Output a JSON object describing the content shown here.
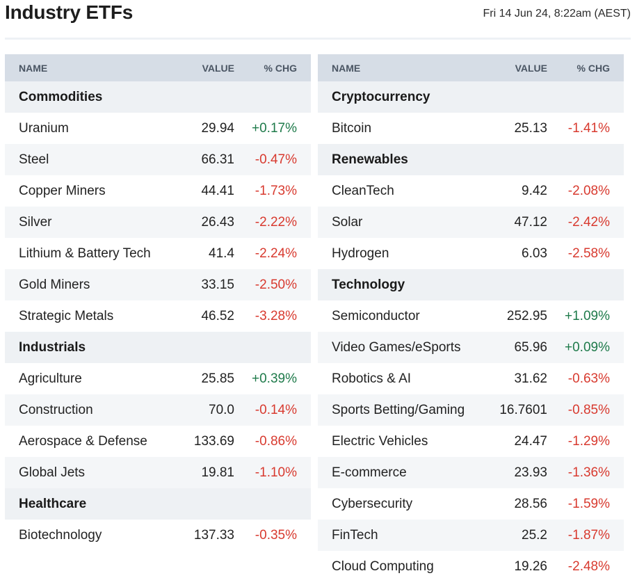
{
  "header": {
    "title": "Industry ETFs",
    "timestamp": "Fri 14 Jun 24, 8:22am (AEST)"
  },
  "columns": {
    "name": "NAME",
    "value": "VALUE",
    "chg": "% CHG"
  },
  "colors": {
    "positive": "#1e7a4a",
    "negative": "#d83a2f",
    "header_bg": "#d6dde6",
    "group_bg": "#eef1f4"
  },
  "left": [
    {
      "group": "Commodities"
    },
    {
      "name": "Uranium",
      "value": "29.94",
      "chg": "+0.17%",
      "dir": "pos"
    },
    {
      "name": "Steel",
      "value": "66.31",
      "chg": "-0.47%",
      "dir": "neg"
    },
    {
      "name": "Copper Miners",
      "value": "44.41",
      "chg": "-1.73%",
      "dir": "neg"
    },
    {
      "name": "Silver",
      "value": "26.43",
      "chg": "-2.22%",
      "dir": "neg"
    },
    {
      "name": "Lithium & Battery Tech",
      "value": "41.4",
      "chg": "-2.24%",
      "dir": "neg"
    },
    {
      "name": "Gold Miners",
      "value": "33.15",
      "chg": "-2.50%",
      "dir": "neg"
    },
    {
      "name": "Strategic Metals",
      "value": "46.52",
      "chg": "-3.28%",
      "dir": "neg"
    },
    {
      "group": "Industrials"
    },
    {
      "name": "Agriculture",
      "value": "25.85",
      "chg": "+0.39%",
      "dir": "pos"
    },
    {
      "name": "Construction",
      "value": "70.0",
      "chg": "-0.14%",
      "dir": "neg"
    },
    {
      "name": "Aerospace & Defense",
      "value": "133.69",
      "chg": "-0.86%",
      "dir": "neg"
    },
    {
      "name": "Global Jets",
      "value": "19.81",
      "chg": "-1.10%",
      "dir": "neg"
    },
    {
      "group": "Healthcare"
    },
    {
      "name": "Biotechnology",
      "value": "137.33",
      "chg": "-0.35%",
      "dir": "neg"
    }
  ],
  "right": [
    {
      "group": "Cryptocurrency"
    },
    {
      "name": "Bitcoin",
      "value": "25.13",
      "chg": "-1.41%",
      "dir": "neg"
    },
    {
      "group": "Renewables"
    },
    {
      "name": "CleanTech",
      "value": "9.42",
      "chg": "-2.08%",
      "dir": "neg"
    },
    {
      "name": "Solar",
      "value": "47.12",
      "chg": "-2.42%",
      "dir": "neg"
    },
    {
      "name": "Hydrogen",
      "value": "6.03",
      "chg": "-2.58%",
      "dir": "neg"
    },
    {
      "group": "Technology"
    },
    {
      "name": "Semiconductor",
      "value": "252.95",
      "chg": "+1.09%",
      "dir": "pos"
    },
    {
      "name": "Video Games/eSports",
      "value": "65.96",
      "chg": "+0.09%",
      "dir": "pos"
    },
    {
      "name": "Robotics & AI",
      "value": "31.62",
      "chg": "-0.63%",
      "dir": "neg"
    },
    {
      "name": "Sports Betting/Gaming",
      "value": "16.7601",
      "chg": "-0.85%",
      "dir": "neg"
    },
    {
      "name": "Electric Vehicles",
      "value": "24.47",
      "chg": "-1.29%",
      "dir": "neg"
    },
    {
      "name": "E-commerce",
      "value": "23.93",
      "chg": "-1.36%",
      "dir": "neg"
    },
    {
      "name": "Cybersecurity",
      "value": "28.56",
      "chg": "-1.59%",
      "dir": "neg"
    },
    {
      "name": "FinTech",
      "value": "25.2",
      "chg": "-1.87%",
      "dir": "neg"
    },
    {
      "name": "Cloud Computing",
      "value": "19.26",
      "chg": "-2.48%",
      "dir": "neg"
    }
  ]
}
